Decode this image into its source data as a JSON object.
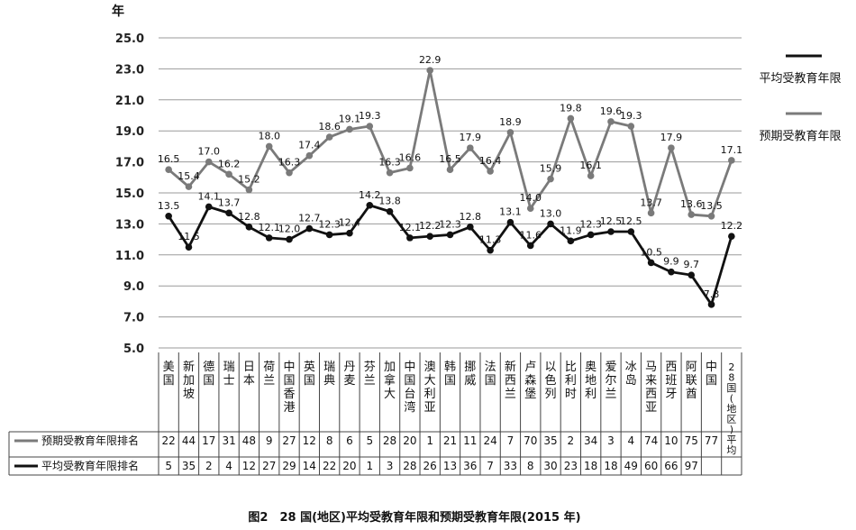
{
  "chart_data": {
    "type": "line",
    "title": "图2　28 国(地区)平均受教育年限和预期受教育年限(2015 年)",
    "ylabel": "年",
    "ylim": [
      5.0,
      25.0
    ],
    "yticks": [
      "25.0",
      "23.0",
      "21.0",
      "19.0",
      "17.0",
      "15.0",
      "13.0",
      "11.0",
      "9.0",
      "7.0",
      "5.0"
    ],
    "grid": true,
    "legend_position": "right",
    "categories": [
      "美国",
      "新加坡",
      "德国",
      "瑞士",
      "日本",
      "荷兰",
      "中国香港",
      "英国",
      "瑞典",
      "丹麦",
      "芬兰",
      "加拿大",
      "中国台湾",
      "澳大利亚",
      "韩国",
      "挪威",
      "法国",
      "新西兰",
      "卢森堡",
      "以色列",
      "比利时",
      "奥地利",
      "爱尔兰",
      "冰岛",
      "马来西亚",
      "西班牙",
      "阿联酋",
      "中国",
      "28国(地区)平均"
    ],
    "series": [
      {
        "name": "平均受教育年限",
        "color": "#111111",
        "values": [
          13.5,
          11.5,
          14.1,
          13.7,
          12.8,
          12.1,
          12.0,
          12.7,
          12.3,
          12.4,
          14.2,
          13.8,
          12.1,
          12.2,
          12.3,
          12.8,
          11.3,
          13.1,
          11.6,
          13.0,
          11.9,
          12.3,
          12.5,
          12.5,
          10.5,
          9.9,
          9.7,
          7.8,
          12.2
        ],
        "labels": [
          "13.5",
          "11.5",
          "14.1",
          "13.7",
          "12.8",
          "12.1",
          "12.0",
          "12.7",
          "12.3",
          "12.4",
          "14.2",
          "13.8",
          "12.1",
          "12.2",
          "12.3",
          "12.8",
          "11.3",
          "13.1",
          "11.6",
          "13.0",
          "11.9",
          "12.3",
          "12.5",
          "12.5",
          "10.5",
          "9.9",
          "9.7",
          "7.8",
          "12.2"
        ]
      },
      {
        "name": "预期受教育年限",
        "color": "#7a7a7a",
        "values": [
          16.5,
          15.4,
          17.0,
          16.2,
          15.2,
          18.0,
          16.3,
          17.4,
          18.6,
          19.1,
          19.3,
          16.3,
          16.6,
          22.9,
          16.5,
          17.9,
          16.4,
          18.9,
          14.0,
          15.9,
          19.8,
          16.1,
          19.6,
          19.3,
          13.7,
          17.9,
          13.6,
          13.5,
          17.1
        ],
        "labels": [
          "16.5",
          "15.4",
          "17.0",
          "16.2",
          "15.2",
          "18.0",
          "16.3",
          "17.4",
          "18.6",
          "19.1",
          "19.3",
          "16.3",
          "16.6",
          "22.9",
          "16.5",
          "17.9",
          "16.4",
          "18.9",
          "14.0",
          "15.9",
          "19.8",
          "16.1",
          "19.6",
          "19.3",
          "13.7",
          "17.9",
          "13.6",
          "13.5",
          "17.1"
        ]
      }
    ],
    "table": {
      "rows": [
        {
          "name": "预期受教育年限排名",
          "color": "#7a7a7a",
          "values": [
            "22",
            "44",
            "17",
            "31",
            "48",
            "9",
            "27",
            "12",
            "8",
            "6",
            "5",
            "28",
            "20",
            "1",
            "21",
            "11",
            "24",
            "7",
            "70",
            "35",
            "2",
            "34",
            "3",
            "4",
            "74",
            "10",
            "75",
            "77",
            ""
          ]
        },
        {
          "name": "平均受教育年限排名",
          "color": "#111111",
          "values": [
            "5",
            "35",
            "2",
            "4",
            "12",
            "27",
            "29",
            "14",
            "22",
            "20",
            "1",
            "3",
            "28",
            "26",
            "13",
            "36",
            "7",
            "33",
            "8",
            "30",
            "23",
            "18",
            "18",
            "49",
            "60",
            "66",
            "97",
            "",
            ""
          ]
        }
      ]
    }
  }
}
